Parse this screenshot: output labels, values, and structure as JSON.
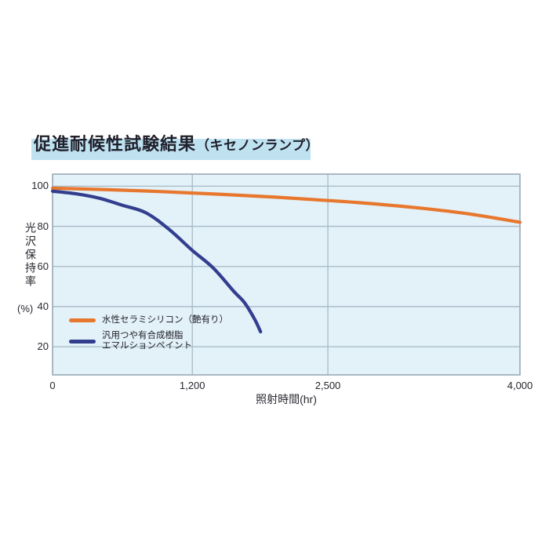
{
  "header": {
    "title_main": "促進耐候性試験結果",
    "title_sub": "（キセノンランプ）"
  },
  "chart_data": {
    "type": "line",
    "title": "促進耐候性試験結果（キセノンランプ）",
    "xlabel": "照射時間(hr)",
    "ylabel_vertical": "光沢保持率",
    "ylabel_unit": "(%)",
    "x_ticks": {
      "labels": [
        "0",
        "1,200",
        "2,500",
        "4,000"
      ],
      "values": [
        0,
        1200,
        2500,
        4000
      ]
    },
    "y_ticks": [
      "100",
      "80",
      "60",
      "40",
      "20"
    ],
    "ylim": [
      6,
      106
    ],
    "grid": true,
    "legend_position": "inside-bottom-left",
    "colors": {
      "plot_background": "#e3f1f8",
      "gridline": "#a6bac6",
      "plot_border": "#93a4af",
      "title_highlight": "#bfe2f1",
      "series_orange": "#e8772e",
      "series_blue": "#333e8f"
    },
    "series": [
      {
        "name": "水性セラミシリコン（艶有り）",
        "name_lines": [
          "水性セラミシリコン（艶有り）"
        ],
        "color": "#e8772e",
        "points": [
          [
            0,
            99
          ],
          [
            400,
            98.4
          ],
          [
            800,
            97.6
          ],
          [
            1200,
            96.6
          ],
          [
            1600,
            95.6
          ],
          [
            2000,
            94.5
          ],
          [
            2400,
            93.2
          ],
          [
            2800,
            91.5
          ],
          [
            3200,
            89.2
          ],
          [
            3600,
            86.2
          ],
          [
            4000,
            82
          ]
        ]
      },
      {
        "name": "汎用つや有合成樹脂エマルションペイント",
        "name_lines": [
          "汎用つや有合成樹脂",
          "エマルションペイント"
        ],
        "color": "#333e8f",
        "points": [
          [
            0,
            97.5
          ],
          [
            200,
            96.2
          ],
          [
            400,
            94
          ],
          [
            600,
            90.5
          ],
          [
            800,
            86.8
          ],
          [
            1000,
            78.5
          ],
          [
            1200,
            68
          ],
          [
            1400,
            59.3
          ],
          [
            1600,
            47.5
          ],
          [
            1700,
            42
          ],
          [
            1800,
            33.5
          ],
          [
            1854,
            27.5
          ]
        ]
      }
    ]
  }
}
